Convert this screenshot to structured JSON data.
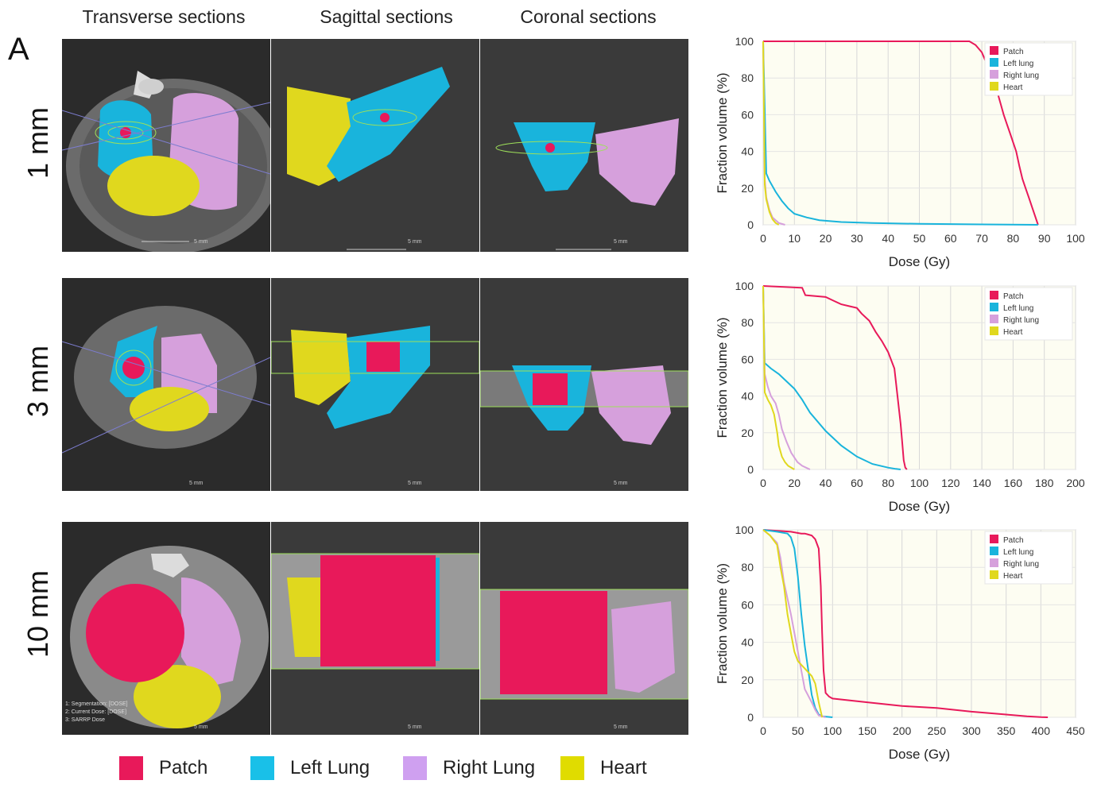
{
  "panel_letter": "A",
  "columns": [
    "Transverse sections",
    "Sagittal sections",
    "Coronal sections"
  ],
  "rows": [
    "1 mm",
    "3 mm",
    "10 mm"
  ],
  "scale_label": "5 mm",
  "overlay_text": [
    "1: Segmentation: [DOSE]",
    "2: Current Dose: [DOSE]",
    "3: SARRP Dose"
  ],
  "colors": {
    "patch": "#e8195a",
    "left_lung": "#19b4dc",
    "right_lung": "#d6a0dc",
    "heart": "#e0d81e"
  },
  "legend": [
    {
      "label": "Patch",
      "color": "#e8195a"
    },
    {
      "label": "Left Lung",
      "color": "#19c0e8"
    },
    {
      "label": "Right Lung",
      "color": "#cfa0f0"
    },
    {
      "label": "Heart",
      "color": "#e0dc00"
    }
  ],
  "chart_data": [
    {
      "type": "line",
      "xlabel": "Dose (Gy)",
      "ylabel": "Fraction volume (%)",
      "xlim": [
        0,
        100
      ],
      "ylim": [
        0,
        100
      ],
      "xticks": [
        0,
        10,
        20,
        30,
        40,
        50,
        60,
        70,
        80,
        90,
        100
      ],
      "yticks": [
        0,
        20,
        40,
        60,
        80,
        100
      ],
      "legend_position": "top-right",
      "series": [
        {
          "name": "Patch",
          "color": "#e8195a",
          "x": [
            0,
            66,
            68,
            70,
            71,
            72,
            73,
            74,
            75,
            76,
            77,
            78,
            79,
            80,
            81,
            82,
            83,
            84,
            85,
            86,
            87,
            88
          ],
          "y": [
            100,
            100,
            98,
            94,
            90,
            86,
            82,
            77,
            72,
            66,
            60,
            55,
            50,
            45,
            40,
            32,
            25,
            20,
            15,
            10,
            5,
            0
          ]
        },
        {
          "name": "Left lung",
          "color": "#19b4dc",
          "x": [
            0,
            1,
            2,
            4,
            6,
            8,
            10,
            14,
            18,
            25,
            35,
            50,
            70,
            88
          ],
          "y": [
            100,
            28,
            24,
            18,
            13,
            9,
            6,
            4,
            2.5,
            1.5,
            1,
            0.5,
            0.2,
            0
          ]
        },
        {
          "name": "Right lung",
          "color": "#d6a0dc",
          "x": [
            0,
            0.5,
            1,
            2,
            3,
            5,
            7
          ],
          "y": [
            100,
            25,
            15,
            8,
            4,
            1,
            0
          ]
        },
        {
          "name": "Heart",
          "color": "#e0d81e",
          "x": [
            0,
            0.5,
            1,
            2,
            3,
            4,
            5
          ],
          "y": [
            100,
            22,
            14,
            7,
            3,
            1,
            0
          ]
        }
      ]
    },
    {
      "type": "line",
      "xlabel": "Dose (Gy)",
      "ylabel": "Fraction volume (%)",
      "xlim": [
        0,
        200
      ],
      "ylim": [
        0,
        100
      ],
      "xticks": [
        0,
        20,
        40,
        60,
        80,
        100,
        120,
        140,
        160,
        180,
        200
      ],
      "yticks": [
        0,
        20,
        40,
        60,
        80,
        100
      ],
      "legend_position": "top-right",
      "series": [
        {
          "name": "Patch",
          "color": "#e8195a",
          "x": [
            0,
            25,
            27,
            40,
            45,
            50,
            55,
            60,
            63,
            68,
            72,
            76,
            80,
            84,
            86,
            88,
            89,
            90,
            91,
            92
          ],
          "y": [
            100,
            99,
            95,
            94,
            92,
            90,
            89,
            88,
            85,
            81,
            75,
            70,
            64,
            55,
            40,
            25,
            15,
            5,
            1,
            0
          ]
        },
        {
          "name": "Left lung",
          "color": "#19b4dc",
          "x": [
            0,
            1,
            5,
            10,
            15,
            20,
            25,
            30,
            40,
            50,
            60,
            70,
            80,
            85,
            88
          ],
          "y": [
            100,
            58,
            55,
            52,
            48,
            44,
            38,
            31,
            21,
            13,
            7,
            3,
            1,
            0.3,
            0
          ]
        },
        {
          "name": "Right lung",
          "color": "#d6a0dc",
          "x": [
            0,
            1,
            3,
            5,
            8,
            10,
            12,
            15,
            18,
            22,
            25,
            30
          ],
          "y": [
            100,
            52,
            45,
            40,
            36,
            30,
            22,
            15,
            9,
            4,
            2,
            0
          ]
        },
        {
          "name": "Heart",
          "color": "#e0d81e",
          "x": [
            0,
            1,
            3,
            5,
            7,
            9,
            10,
            12,
            14,
            16,
            18,
            20
          ],
          "y": [
            100,
            42,
            38,
            35,
            30,
            20,
            13,
            7,
            4,
            2,
            1,
            0
          ]
        }
      ]
    },
    {
      "type": "line",
      "xlabel": "Dose (Gy)",
      "ylabel": "Fraction volume (%)",
      "xlim": [
        0,
        450
      ],
      "ylim": [
        0,
        100
      ],
      "xticks": [
        0,
        50,
        100,
        150,
        200,
        250,
        300,
        350,
        400,
        450
      ],
      "yticks": [
        0,
        20,
        40,
        60,
        80,
        100
      ],
      "legend_position": "top-right",
      "series": [
        {
          "name": "Patch",
          "color": "#e8195a",
          "x": [
            0,
            40,
            55,
            60,
            70,
            75,
            80,
            83,
            85,
            87,
            90,
            95,
            100,
            150,
            200,
            250,
            300,
            350,
            380,
            400,
            410
          ],
          "y": [
            100,
            99,
            98,
            98,
            97,
            95,
            90,
            70,
            45,
            25,
            13,
            11,
            10,
            8,
            6,
            5,
            3,
            1.5,
            0.5,
            0.1,
            0
          ]
        },
        {
          "name": "Left lung",
          "color": "#19b4dc",
          "x": [
            0,
            20,
            35,
            40,
            45,
            50,
            55,
            60,
            65,
            70,
            75,
            80,
            85,
            100
          ],
          "y": [
            100,
            99,
            98,
            96,
            90,
            75,
            55,
            38,
            25,
            12,
            5,
            1.5,
            0.5,
            0
          ]
        },
        {
          "name": "Right lung",
          "color": "#d6a0dc",
          "x": [
            0,
            10,
            20,
            25,
            30,
            40,
            45,
            50,
            55,
            60,
            70,
            75,
            80,
            90
          ],
          "y": [
            100,
            97,
            93,
            85,
            72,
            55,
            45,
            35,
            25,
            15,
            8,
            4,
            1,
            0
          ]
        },
        {
          "name": "Heart",
          "color": "#e0d81e",
          "x": [
            0,
            10,
            20,
            25,
            30,
            35,
            40,
            45,
            50,
            55,
            60,
            65,
            70,
            75,
            80,
            85
          ],
          "y": [
            100,
            97,
            92,
            80,
            70,
            55,
            45,
            35,
            30,
            28,
            26,
            24,
            22,
            18,
            8,
            0
          ]
        }
      ]
    }
  ]
}
